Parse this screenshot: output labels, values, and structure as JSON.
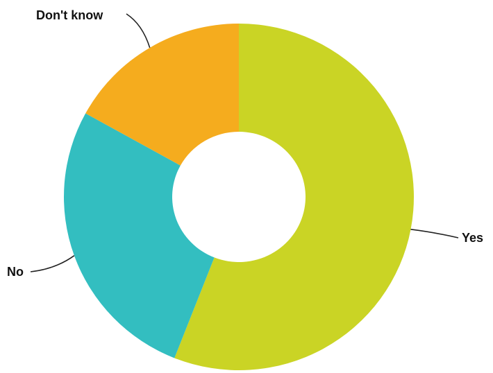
{
  "chart_data": {
    "type": "pie",
    "variant": "donut",
    "categories": [
      "Yes",
      "No",
      "Don't know"
    ],
    "values": [
      56,
      27,
      17
    ],
    "colors": [
      "#cad425",
      "#33bec0",
      "#f5ac1e"
    ],
    "title": "",
    "legend": "none"
  }
}
